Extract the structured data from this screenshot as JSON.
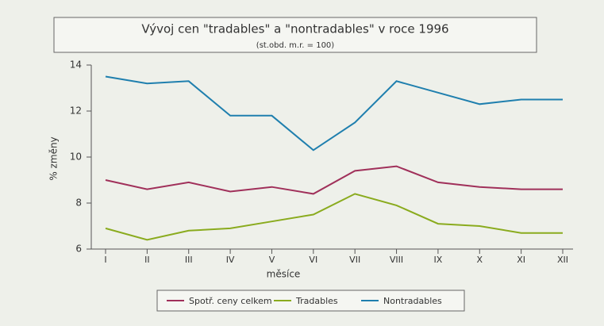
{
  "chart_data": {
    "type": "line",
    "title": "Vývoj cen \"tradables\" a \"nontradables\" v roce 1996",
    "subtitle": "(st.obd. m.r. = 100)",
    "y_label": "% změny",
    "x_label": "měsíce",
    "categories": [
      "I",
      "II",
      "III",
      "IV",
      "V",
      "VI",
      "VII",
      "VIII",
      "IX",
      "X",
      "XI",
      "XII"
    ],
    "series": [
      {
        "name": "Spotř. ceny celkem",
        "color": "#a0305a",
        "values": [
          9.0,
          8.6,
          8.9,
          8.5,
          8.7,
          8.4,
          9.4,
          9.6,
          8.9,
          8.7,
          8.6,
          8.6
        ]
      },
      {
        "name": "Tradables",
        "color": "#8aab1e",
        "values": [
          6.9,
          6.4,
          6.8,
          6.9,
          7.2,
          7.5,
          8.4,
          7.9,
          7.1,
          7.0,
          6.7,
          6.7
        ]
      },
      {
        "name": "Nontradables",
        "color": "#1f7fae",
        "values": [
          13.5,
          13.2,
          13.3,
          11.8,
          11.8,
          10.3,
          11.5,
          13.3,
          12.8,
          12.3,
          12.5,
          12.5
        ]
      }
    ],
    "ylim": [
      6,
      14
    ],
    "yticks": [
      6,
      8,
      10,
      12,
      14
    ],
    "legend": "bottom"
  }
}
